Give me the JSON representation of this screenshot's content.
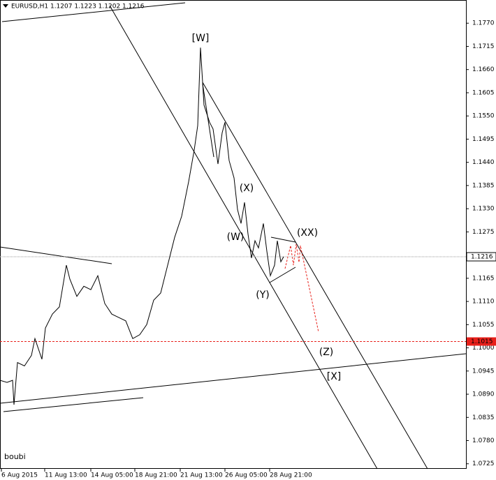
{
  "chart_data": {
    "type": "line",
    "header": "EURUSD,H1  1.1207 1.1223 1.1202 1.1216",
    "author": "boubi",
    "series": [
      {
        "color": "#000000",
        "x": [
          0,
          10,
          18,
          20,
          25,
          35,
          45,
          50,
          60,
          65,
          75,
          85,
          95,
          100,
          110,
          120,
          130,
          140,
          150,
          160,
          170,
          180,
          190,
          200,
          210,
          220,
          230,
          240,
          250,
          260,
          270,
          278,
          283,
          287,
          292,
          300,
          305,
          312,
          318,
          322,
          328,
          335,
          340,
          345,
          350,
          355,
          360,
          365,
          370,
          377,
          382,
          387,
          393,
          397,
          402,
          406
        ],
        "values": [
          1.0923,
          1.0918,
          1.0923,
          1.0865,
          1.0965,
          1.0957,
          1.0982,
          1.1022,
          1.0973,
          1.1047,
          1.108,
          1.1097,
          1.1196,
          1.1163,
          1.1122,
          1.1146,
          1.1138,
          1.1171,
          1.1105,
          1.108,
          1.1072,
          1.1064,
          1.1022,
          1.1031,
          1.1055,
          1.1113,
          1.113,
          1.1196,
          1.1262,
          1.1312,
          1.1394,
          1.1469,
          1.1527,
          1.1712,
          1.1576,
          1.1535,
          1.1519,
          1.1436,
          1.151,
          1.1535,
          1.1444,
          1.1403,
          1.1328,
          1.1295,
          1.1345,
          1.127,
          1.1213,
          1.1254,
          1.1237,
          1.1295,
          1.1229,
          1.1171,
          1.1196,
          1.1254,
          1.1204,
          1.1216
        ]
      }
    ],
    "xlim": [
      0,
      667
    ],
    "ylim": [
      1.0713,
      1.1825
    ],
    "xticks": [
      {
        "value": 2,
        "label": "6 Aug 2015"
      },
      {
        "value": 64,
        "label": "11 Aug 13:00"
      },
      {
        "value": 130,
        "label": "14 Aug 05:00"
      },
      {
        "value": 193,
        "label": "18 Aug 21:00"
      },
      {
        "value": 258,
        "label": "21 Aug 13:00"
      },
      {
        "value": 322,
        "label": "26 Aug 05:00"
      },
      {
        "value": 386,
        "label": "28 Aug 21:00"
      }
    ],
    "yticks": [
      {
        "value": 1.177,
        "label": "1.1770"
      },
      1.1715,
      {
        "value": 1.166,
        "label": "1.1660"
      },
      1.1605,
      {
        "value": 1.155,
        "label": "1.1550"
      },
      1.1495,
      {
        "value": 1.144,
        "label": "1.1440"
      },
      1.1385,
      {
        "value": 1.133,
        "label": "1.1330"
      },
      1.1275,
      1.1165,
      {
        "value": 1.111,
        "label": "1.1110"
      },
      1.1055,
      {
        "value": 1.1,
        "label": "1.1000"
      },
      1.0945,
      {
        "value": 1.089,
        "label": "1.0890"
      },
      1.0835,
      {
        "value": 1.078,
        "label": "1.0780"
      },
      1.0725
    ],
    "bid_line": 1.1216,
    "level_line": 1.1015,
    "annotations": [
      {
        "text": "[W]",
        "color": "#e8201a"
      },
      {
        "text": "(X)",
        "color": "#2a9a2a"
      },
      {
        "text": "(W)",
        "color": "#2a9a2a"
      },
      {
        "text": "(XX)",
        "color": "#2a9a2a"
      },
      {
        "text": "(Y)",
        "color": "#2a9a2a"
      },
      {
        "text": "(Z)",
        "color": "#2a9a2a"
      },
      {
        "text": "[X]",
        "color": "#e8201a"
      }
    ]
  }
}
